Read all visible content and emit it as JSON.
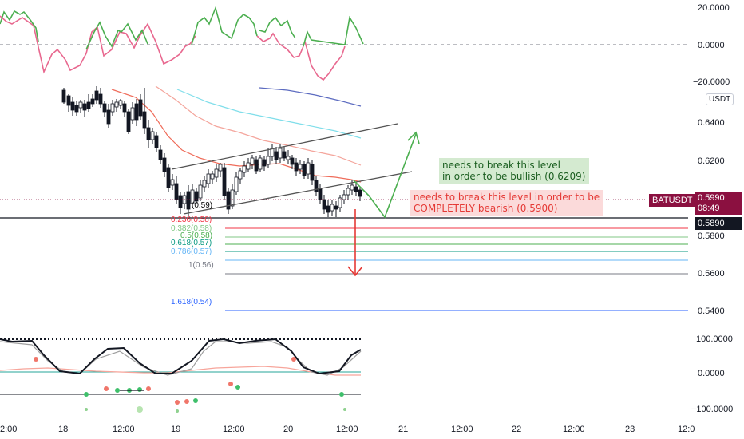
{
  "symbol": "BATUSDT",
  "currency_badge": "USDT",
  "current_price": "0.5990",
  "countdown": "08:49",
  "line_price": "0.5890",
  "price_axis": [
    "0.6400",
    "0.6200",
    "0.5800",
    "0.5600",
    "0.5400"
  ],
  "top_osc_axis": [
    "20.0000",
    "0.0000",
    "−20.0000"
  ],
  "bottom_osc_axis": [
    "100.0000",
    "0.0000",
    "−100.0000"
  ],
  "time_axis": [
    "2:00",
    "18",
    "12:00",
    "19",
    "12:00",
    "20",
    "12:00",
    "21",
    "12:00",
    "22",
    "12:00",
    "23",
    "12:0"
  ],
  "fib_levels": [
    {
      "label": "(0.59)",
      "color": "#787b86"
    },
    {
      "label": "0.236(0.58)",
      "color": "#f23645"
    },
    {
      "label": "0.382(0.58)",
      "color": "#81c784"
    },
    {
      "label": "0.5(0.58)",
      "color": "#4caf50"
    },
    {
      "label": "0.618(0.57)",
      "color": "#089981"
    },
    {
      "label": "0.786(0.57)",
      "color": "#64b5f6"
    },
    {
      "label": "1(0.56)",
      "color": "#787b86"
    },
    {
      "label": "1.618(0.54)",
      "color": "#2962ff"
    }
  ],
  "annotations": {
    "bullish": [
      "needs to break this level",
      "in order to be bullish (0.6209)"
    ],
    "bearish": [
      "needs to break this level in order to be",
      "COMPLETELY bearish (0.5900)"
    ]
  },
  "colors": {
    "bull": "#089981",
    "bear": "#f23645",
    "accent": "#8b1040",
    "up_arrow": "#4caf50",
    "down_arrow": "#e53935"
  }
}
